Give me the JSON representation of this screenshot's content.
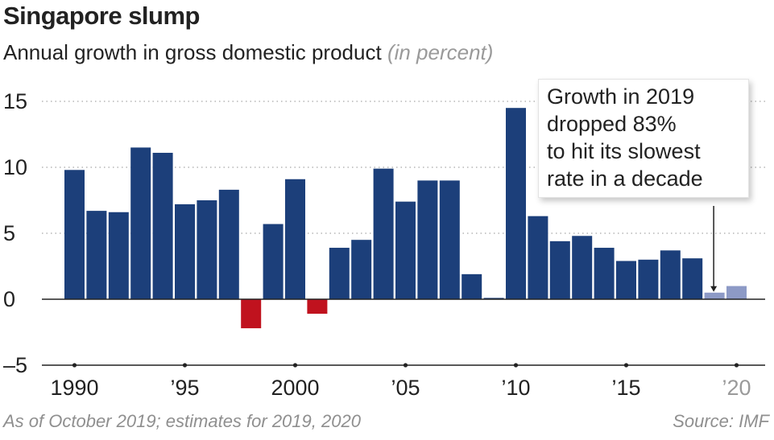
{
  "title": "Singapore slump",
  "subtitle": "Annual growth in gross domestic product",
  "subtitle_unit": "(in percent)",
  "footnote": "As of October 2019; estimates for 2019, 2020",
  "source": "Source: IMF",
  "annotation": {
    "lines": [
      "Growth in 2019",
      "dropped 83%",
      "to hit its slowest",
      "rate in a decade"
    ],
    "target_year": 2019
  },
  "colors": {
    "positive": "#1c3f7a",
    "negative": "#c0121e",
    "estimate": "#8d9ac6",
    "grid": "#b5b5b5",
    "axis": "#222222",
    "text": "#222222"
  },
  "chart_data": {
    "type": "bar",
    "title": "Singapore slump",
    "subtitle": "Annual growth in gross domestic product (in percent)",
    "xlabel": "",
    "ylabel": "",
    "ylim": [
      -5,
      15
    ],
    "yticks": [
      15,
      10,
      5,
      0,
      -5
    ],
    "ytick_labels": [
      "15",
      "10",
      "5",
      "0",
      "–5"
    ],
    "xtick_years": [
      1990,
      1995,
      2000,
      2005,
      2010,
      2015,
      2020
    ],
    "xtick_labels": [
      "1990",
      "’95",
      "2000",
      "’05",
      "’10",
      "’15",
      "’20"
    ],
    "grid": true,
    "x": [
      1990,
      1991,
      1992,
      1993,
      1994,
      1995,
      1996,
      1997,
      1998,
      1999,
      2000,
      2001,
      2002,
      2003,
      2004,
      2005,
      2006,
      2007,
      2008,
      2009,
      2010,
      2011,
      2012,
      2013,
      2014,
      2015,
      2016,
      2017,
      2018,
      2019,
      2020
    ],
    "values": [
      9.8,
      6.7,
      6.6,
      11.5,
      11.1,
      7.2,
      7.5,
      8.3,
      -2.2,
      5.7,
      9.1,
      -1.1,
      3.9,
      4.5,
      9.9,
      7.4,
      9.0,
      9.0,
      1.9,
      0.1,
      14.5,
      6.3,
      4.4,
      4.8,
      3.9,
      2.9,
      3.0,
      3.7,
      3.1,
      0.5,
      1.0
    ],
    "estimate_years": [
      2019,
      2020
    ]
  }
}
